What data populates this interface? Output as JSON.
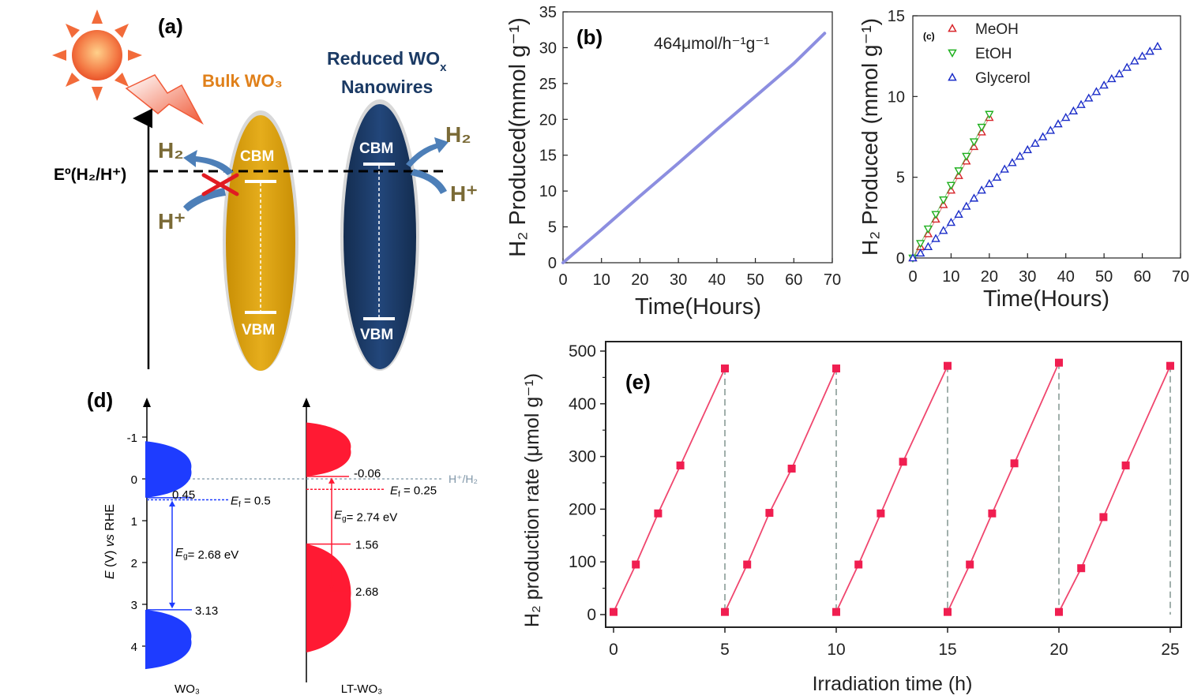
{
  "panel_a": {
    "label": "(a)",
    "bulk_title": "Bulk WO₃",
    "reduced_title_line1": "Reduced WO",
    "reduced_title_sub": "x",
    "reduced_title_line2": "Nanowires",
    "potential_label": "Eº(H₂/H⁺)",
    "cbm": "CBM",
    "vbm": "VBM",
    "h2": "H₂",
    "hplus": "H⁺",
    "colors": {
      "bulk": "#d8a10a",
      "reduced": "#1b3a64",
      "arrow": "#4d7fb8",
      "sun": "#f26b3a",
      "text_gold": "#e0801a",
      "text_navy": "#1b3a64",
      "text_olive": "#7a6a36"
    }
  },
  "chart_data": [
    {
      "id": "b",
      "type": "line",
      "label": "(b)",
      "annotation": "464μmol/h⁻¹g⁻¹",
      "xlabel": "Time(Hours)",
      "ylabel": "H₂ Produced(mmol g⁻¹)",
      "xlim": [
        0,
        70
      ],
      "ylim": [
        0,
        35
      ],
      "xticks": [
        0,
        10,
        20,
        30,
        40,
        50,
        60,
        70
      ],
      "yticks": [
        0,
        5,
        10,
        15,
        20,
        25,
        30,
        35
      ],
      "series": [
        {
          "x": [
            0,
            10,
            20,
            30,
            40,
            50,
            60,
            68
          ],
          "y": [
            0,
            4.6,
            9.3,
            13.9,
            18.6,
            23.2,
            27.8,
            32
          ],
          "color": "#8c8ee0"
        }
      ]
    },
    {
      "id": "c",
      "type": "scatter",
      "label": "(c)",
      "xlabel": "Time(Hours)",
      "ylabel": "H₂ Produced (mmol g⁻¹)",
      "xlim": [
        0,
        70
      ],
      "ylim": [
        0,
        15
      ],
      "xticks": [
        0,
        10,
        20,
        30,
        40,
        50,
        60,
        70
      ],
      "yticks": [
        0,
        5,
        10,
        15
      ],
      "legend": "top-left",
      "series": [
        {
          "name": "MeOH",
          "marker": "triangle-up",
          "color": "#d8242a",
          "x": [
            0,
            2,
            4,
            6,
            8,
            10,
            12,
            14,
            16,
            18,
            20
          ],
          "y": [
            0,
            0.7,
            1.5,
            2.4,
            3.3,
            4.2,
            5.1,
            6.0,
            6.9,
            7.8,
            8.7
          ]
        },
        {
          "name": "EtOH",
          "marker": "triangle-down",
          "color": "#1fb01f",
          "x": [
            0,
            2,
            4,
            6,
            8,
            10,
            12,
            14,
            16,
            18,
            20
          ],
          "y": [
            0,
            0.9,
            1.8,
            2.7,
            3.6,
            4.5,
            5.4,
            6.3,
            7.2,
            8.1,
            8.9
          ]
        },
        {
          "name": "Glycerol",
          "marker": "triangle-up",
          "color": "#1a2cc8",
          "x": [
            0,
            2,
            4,
            6,
            8,
            10,
            12,
            14,
            16,
            18,
            20,
            22,
            24,
            26,
            28,
            30,
            32,
            34,
            36,
            38,
            40,
            42,
            44,
            46,
            48,
            50,
            52,
            54,
            56,
            58,
            60,
            62,
            64
          ],
          "y": [
            0,
            0.3,
            0.7,
            1.2,
            1.7,
            2.2,
            2.7,
            3.2,
            3.7,
            4.2,
            4.6,
            5.0,
            5.5,
            5.9,
            6.3,
            6.7,
            7.1,
            7.5,
            7.9,
            8.3,
            8.7,
            9.1,
            9.5,
            9.9,
            10.3,
            10.7,
            11.1,
            11.4,
            11.8,
            12.2,
            12.5,
            12.8,
            13.1
          ]
        }
      ]
    },
    {
      "id": "d",
      "type": "diagram",
      "label": "(d)",
      "ylabel_parts": [
        "E",
        " (V) ",
        "vs",
        " RHE"
      ],
      "ylim": [
        -1.5,
        4.5
      ],
      "yticks": [
        -1,
        0,
        1,
        2,
        3,
        4
      ],
      "ref_label": "H⁺/H₂",
      "materials": [
        {
          "name": "WO₃",
          "color": "#1e3cff",
          "cb_edge": 0.45,
          "fermi": 0.5,
          "vb_edge": 3.13,
          "fermi_label": "= 0.5",
          "eg_label": "= 2.68 eV",
          "cb_label": "0.45",
          "vb_label": "3.13"
        },
        {
          "name": "LT-WO₃",
          "color": "#ff1a33",
          "cb_edge": -0.06,
          "fermi": 0.25,
          "vb_edge": 2.68,
          "mid": 1.56,
          "fermi_label": "= 0.25",
          "eg_label": "= 2.74 eV",
          "cb_label": "-0.06",
          "vb_label": "2.68",
          "mid_label": "1.56"
        }
      ]
    },
    {
      "id": "e",
      "type": "line",
      "label": "(e)",
      "xlabel": "Irradiation time (h)",
      "ylabel": "H₂ production rate (μmol g⁻¹)",
      "xlim": [
        -0.3,
        25.5
      ],
      "ylim": [
        -5,
        500
      ],
      "xticks": [
        0,
        5,
        10,
        15,
        20,
        25
      ],
      "yticks": [
        0,
        100,
        200,
        300,
        400,
        500
      ],
      "color": "#f0466e",
      "cycles": [
        {
          "x": [
            0,
            1,
            2,
            3,
            5
          ],
          "y": [
            5,
            95,
            192,
            283,
            467
          ]
        },
        {
          "x": [
            5,
            6,
            7,
            8,
            10
          ],
          "y": [
            5,
            95,
            193,
            277,
            467
          ]
        },
        {
          "x": [
            10,
            11,
            12,
            13,
            15
          ],
          "y": [
            5,
            95,
            192,
            290,
            472
          ]
        },
        {
          "x": [
            15,
            16,
            17,
            18,
            20
          ],
          "y": [
            5,
            95,
            192,
            287,
            478
          ]
        },
        {
          "x": [
            20,
            21,
            22,
            23,
            25
          ],
          "y": [
            5,
            88,
            185,
            283,
            472
          ]
        }
      ],
      "dividers": [
        5,
        10,
        15,
        20,
        25
      ]
    }
  ]
}
